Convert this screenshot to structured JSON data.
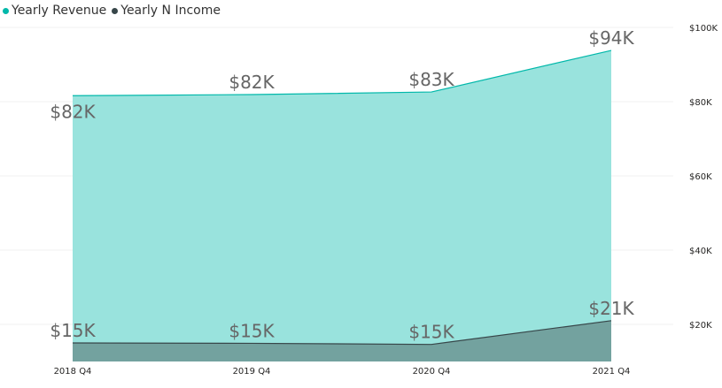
{
  "legend": {
    "items": [
      {
        "label": "Yearly Revenue",
        "color": "#01B8AA"
      },
      {
        "label": "Yearly N Income",
        "color": "#374649"
      }
    ]
  },
  "chart_data": {
    "type": "area",
    "categories": [
      "2018 Q4",
      "2019 Q4",
      "2020 Q4",
      "2021 Q4"
    ],
    "series": [
      {
        "name": "Yearly Revenue",
        "values": [
          81600,
          81900,
          82600,
          93800
        ],
        "labels": [
          "$82K",
          "$82K",
          "$83K",
          "$94K"
        ],
        "fill": "#99E3DD",
        "stroke": "#01B8AA"
      },
      {
        "name": "Yearly N Income",
        "values": [
          15000,
          14900,
          14600,
          21000
        ],
        "labels": [
          "$15K",
          "$15K",
          "$15K",
          "$21K"
        ],
        "fill": "#73A29F",
        "stroke": "#374649"
      }
    ],
    "y_ticks": [
      20000,
      40000,
      60000,
      80000,
      100000
    ],
    "y_tick_labels": [
      "$20K",
      "$40K",
      "$60K",
      "$80K",
      "$100K"
    ],
    "ylim": [
      10000,
      100000
    ],
    "y_axis_position": "right",
    "grid": true,
    "legend_position": "top-left"
  }
}
